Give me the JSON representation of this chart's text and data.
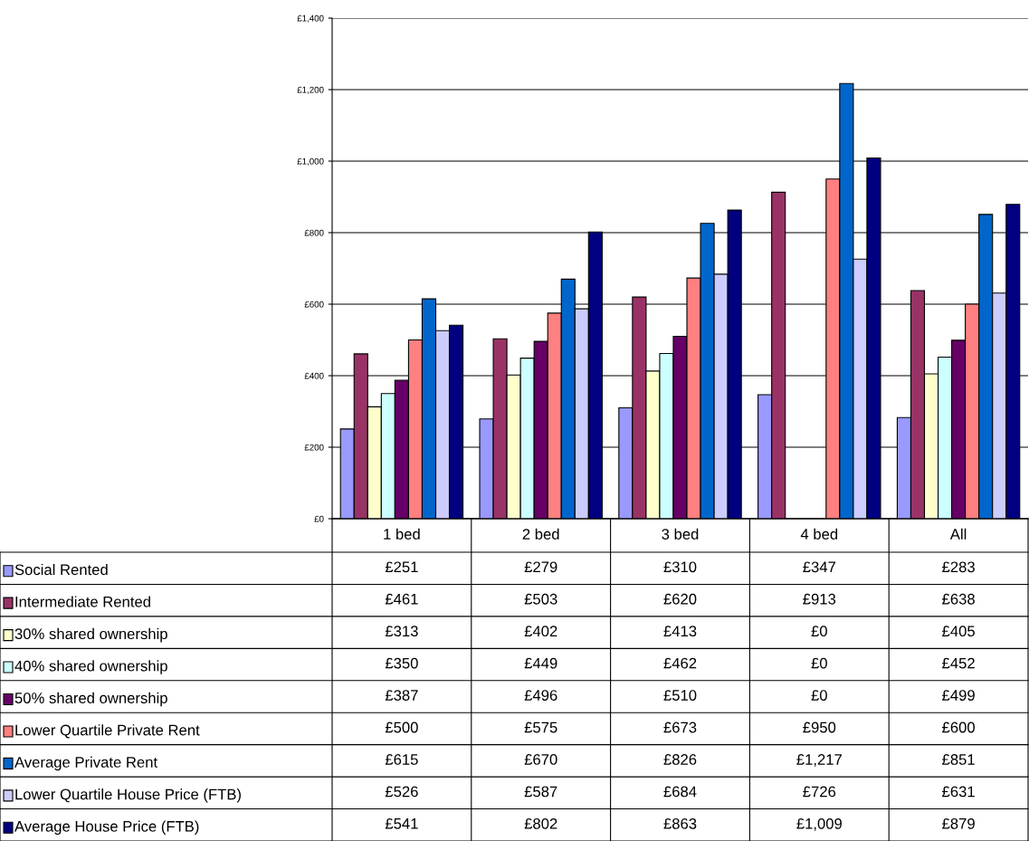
{
  "chart_data": {
    "type": "bar",
    "categories": [
      "1 bed",
      "2 bed",
      "3 bed",
      "4 bed",
      "All"
    ],
    "series": [
      {
        "name": "Social Rented",
        "color": "#9999ff",
        "values": [
          251,
          279,
          310,
          347,
          283
        ],
        "value_labels": [
          "£251",
          "£279",
          "£310",
          "£347",
          "£283"
        ]
      },
      {
        "name": "Intermediate Rented",
        "color": "#993366",
        "values": [
          461,
          503,
          620,
          913,
          638
        ],
        "value_labels": [
          "£461",
          "£503",
          "£620",
          "£913",
          "£638"
        ]
      },
      {
        "name": "30% shared ownership",
        "color": "#ffffcc",
        "values": [
          313,
          402,
          413,
          0,
          405
        ],
        "value_labels": [
          "£313",
          "£402",
          "£413",
          "£0",
          "£405"
        ]
      },
      {
        "name": "40% shared ownership",
        "color": "#ccffff",
        "values": [
          350,
          449,
          462,
          0,
          452
        ],
        "value_labels": [
          "£350",
          "£449",
          "£462",
          "£0",
          "£452"
        ]
      },
      {
        "name": "50% shared ownership",
        "color": "#660066",
        "values": [
          387,
          496,
          510,
          0,
          499
        ],
        "value_labels": [
          "£387",
          "£496",
          "£510",
          "£0",
          "£499"
        ]
      },
      {
        "name": "Lower Quartile Private Rent",
        "color": "#ff8080",
        "values": [
          500,
          575,
          673,
          950,
          600
        ],
        "value_labels": [
          "£500",
          "£575",
          "£673",
          "£950",
          "£600"
        ]
      },
      {
        "name": "Average Private Rent",
        "color": "#0066cc",
        "values": [
          615,
          670,
          826,
          1217,
          851
        ],
        "value_labels": [
          "£615",
          "£670",
          "£826",
          "£1,217",
          "£851"
        ]
      },
      {
        "name": "Lower Quartile House Price (FTB)",
        "color": "#ccccff",
        "values": [
          526,
          587,
          684,
          726,
          631
        ],
        "value_labels": [
          "£526",
          "£587",
          "£684",
          "£726",
          "£631"
        ]
      },
      {
        "name": "Average House Price (FTB)",
        "color": "#000080",
        "values": [
          541,
          802,
          863,
          1009,
          879
        ],
        "value_labels": [
          "£541",
          "£802",
          "£863",
          "£1,009",
          "£879"
        ]
      }
    ],
    "ylim": [
      0,
      1400
    ],
    "yticks": [
      {
        "value": 0,
        "label": "£0"
      },
      {
        "value": 200,
        "label": "£200"
      },
      {
        "value": 400,
        "label": "£400"
      },
      {
        "value": 600,
        "label": "£600"
      },
      {
        "value": 800,
        "label": "£800"
      },
      {
        "value": 1000,
        "label": "£1,000"
      },
      {
        "value": 1200,
        "label": "£1,200"
      },
      {
        "value": 1400,
        "label": "£1,400"
      }
    ],
    "grid": "y",
    "legend": "bottom left"
  }
}
